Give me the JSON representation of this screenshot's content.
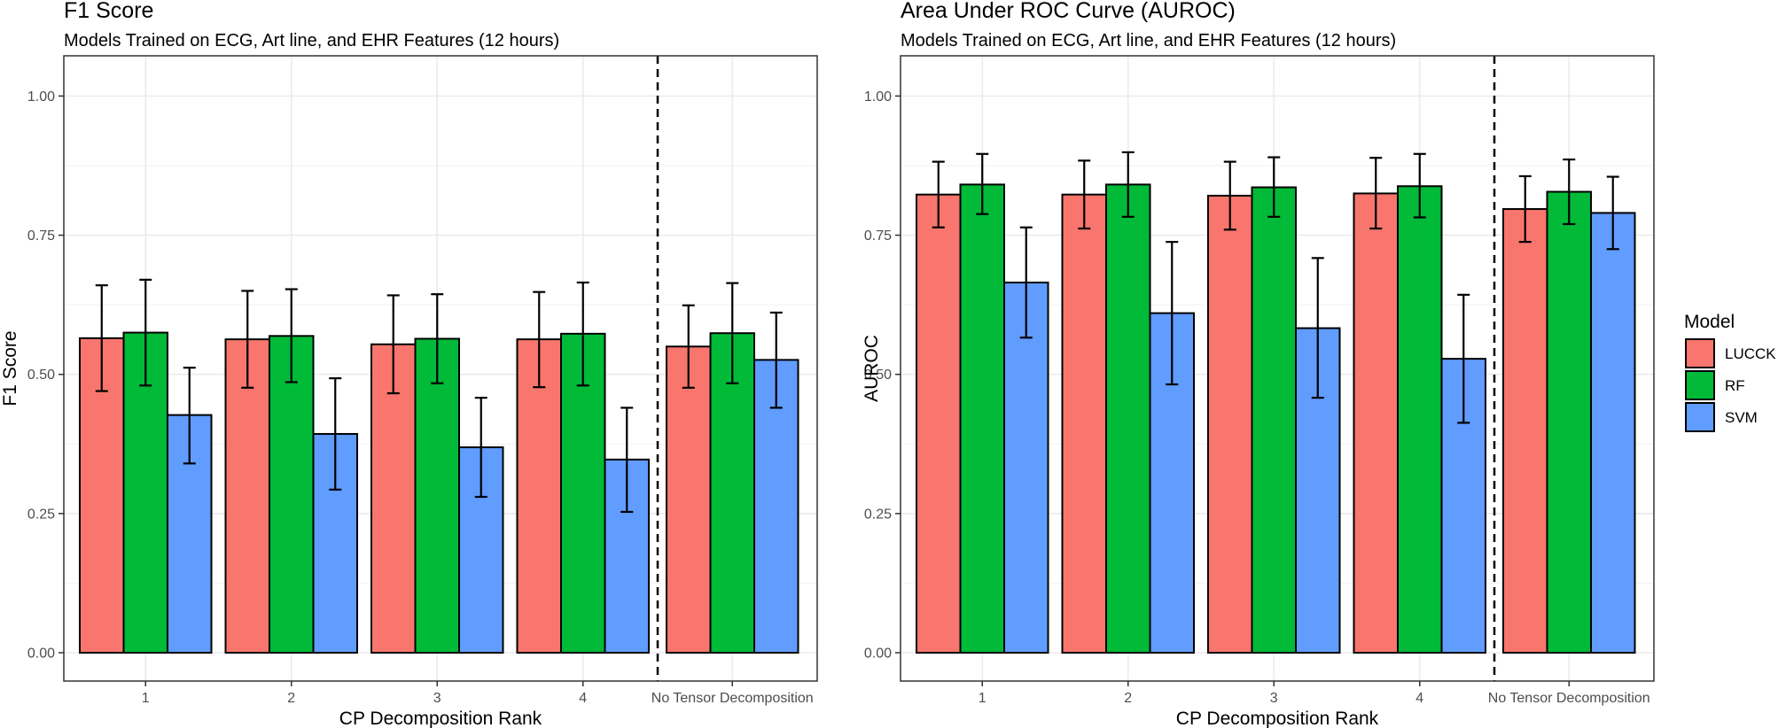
{
  "legend": {
    "title": "Model",
    "items": [
      {
        "label": "LUCCK",
        "color": "#F8766D"
      },
      {
        "label": "RF",
        "color": "#00BA38"
      },
      {
        "label": "SVM",
        "color": "#619CFF"
      }
    ]
  },
  "chart_data": [
    {
      "type": "bar",
      "title": "F1 Score",
      "subtitle": "Models Trained on ECG, Art line, and EHR Features (12 hours)",
      "xlabel": "CP Decomposition Rank",
      "ylabel": "F1 Score",
      "categories": [
        "1",
        "2",
        "3",
        "4",
        "No Tensor Decomposition"
      ],
      "ylim": [
        0,
        1.05
      ],
      "yticks": [
        "0.00",
        "0.25",
        "0.50",
        "0.75",
        "1.00"
      ],
      "grid": true,
      "separator_after_category": "4",
      "series": [
        {
          "name": "LUCCK",
          "values": [
            0.565,
            0.563,
            0.554,
            0.563,
            0.55
          ],
          "err_low": [
            0.47,
            0.476,
            0.466,
            0.477,
            0.476
          ],
          "err_high": [
            0.66,
            0.65,
            0.642,
            0.648,
            0.624
          ]
        },
        {
          "name": "RF",
          "values": [
            0.575,
            0.569,
            0.564,
            0.573,
            0.574
          ],
          "err_low": [
            0.48,
            0.486,
            0.484,
            0.48,
            0.484
          ],
          "err_high": [
            0.67,
            0.653,
            0.644,
            0.665,
            0.664
          ]
        },
        {
          "name": "SVM",
          "values": [
            0.427,
            0.393,
            0.369,
            0.347,
            0.526
          ],
          "err_low": [
            0.34,
            0.293,
            0.28,
            0.253,
            0.44
          ],
          "err_high": [
            0.512,
            0.493,
            0.458,
            0.44,
            0.611
          ]
        }
      ]
    },
    {
      "type": "bar",
      "title": "Area Under ROC Curve (AUROC)",
      "subtitle": "Models Trained on ECG, Art line, and EHR Features (12 hours)",
      "xlabel": "CP Decomposition Rank",
      "ylabel": "AUROC",
      "categories": [
        "1",
        "2",
        "3",
        "4",
        "No Tensor Decomposition"
      ],
      "ylim": [
        0,
        1.05
      ],
      "yticks": [
        "0.00",
        "0.25",
        "0.50",
        "0.75",
        "1.00"
      ],
      "grid": true,
      "separator_after_category": "4",
      "series": [
        {
          "name": "LUCCK",
          "values": [
            0.823,
            0.823,
            0.821,
            0.825,
            0.797
          ],
          "err_low": [
            0.764,
            0.762,
            0.76,
            0.762,
            0.738
          ],
          "err_high": [
            0.882,
            0.884,
            0.882,
            0.889,
            0.856
          ]
        },
        {
          "name": "RF",
          "values": [
            0.841,
            0.841,
            0.836,
            0.838,
            0.828
          ],
          "err_low": [
            0.788,
            0.783,
            0.783,
            0.782,
            0.77
          ],
          "err_high": [
            0.896,
            0.899,
            0.89,
            0.896,
            0.886
          ]
        },
        {
          "name": "SVM",
          "values": [
            0.665,
            0.61,
            0.583,
            0.528,
            0.79
          ],
          "err_low": [
            0.566,
            0.482,
            0.458,
            0.413,
            0.725
          ],
          "err_high": [
            0.764,
            0.738,
            0.709,
            0.643,
            0.855
          ]
        }
      ]
    }
  ]
}
